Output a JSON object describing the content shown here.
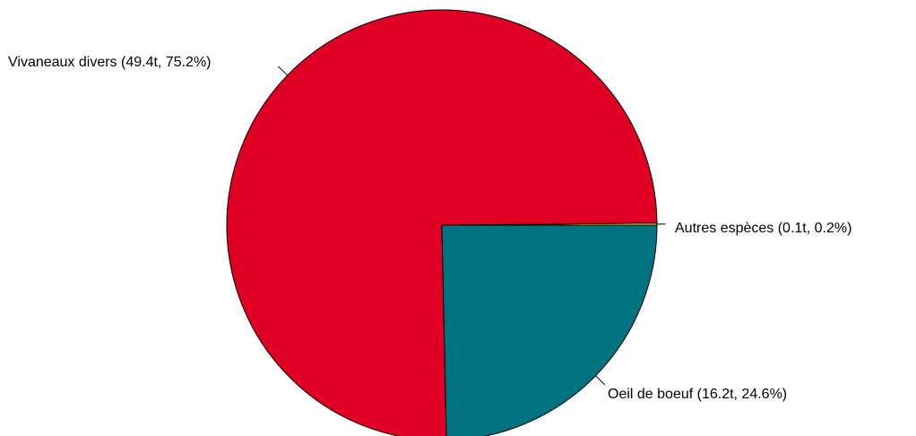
{
  "chart_data": {
    "type": "pie",
    "start_angle_deg": 0,
    "direction": "counterclockwise",
    "slices": [
      {
        "name": "Autres espèces",
        "value": 0.1,
        "percent": 0.2,
        "label": "Autres espèces (0.1t, 0.2%)",
        "color": "#FFFF66"
      },
      {
        "name": "Vivaneaux divers",
        "value": 49.4,
        "percent": 75.2,
        "label": "Vivaneaux divers (49.4t, 75.2%)",
        "color": "#DF0024"
      },
      {
        "name": "Oeil de boeuf",
        "value": 16.2,
        "percent": 24.6,
        "label": "Oeil de boeuf (16.2t, 24.6%)",
        "color": "#007381"
      }
    ]
  }
}
